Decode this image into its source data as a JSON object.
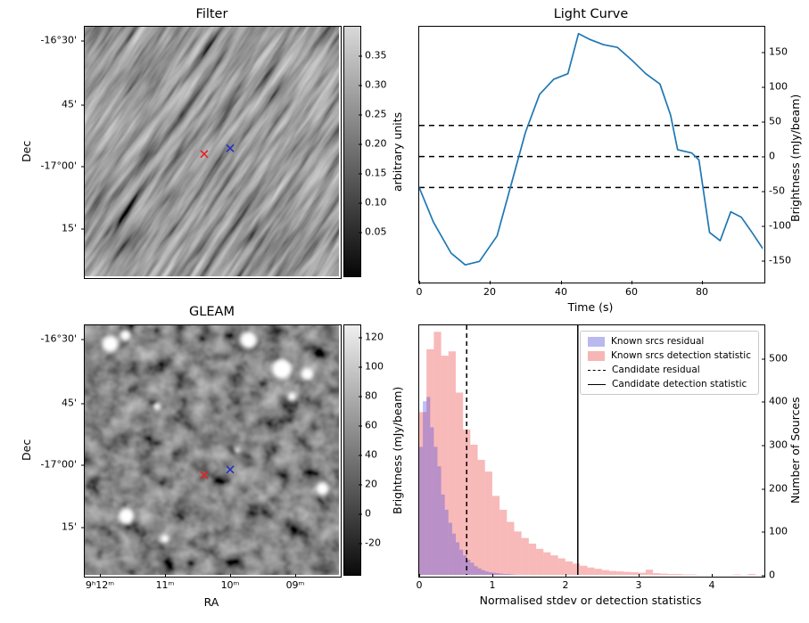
{
  "figure": {
    "background": "#ffffff"
  },
  "filter_panel": {
    "title": "Filter",
    "ylabel": "Dec",
    "yticks": [
      "-16°30'",
      "45'",
      "-17°00'",
      "15'"
    ],
    "colorbar_label": "arbitrary units",
    "colorbar_ticks": [
      "0.35",
      "0.30",
      "0.25",
      "0.20",
      "0.15",
      "0.10",
      "0.05"
    ]
  },
  "light_curve_panel": {
    "title": "Light Curve",
    "xlabel": "Time (s)",
    "ylabel": "Brightness (mJy/beam)",
    "xticks": [
      "0",
      "20",
      "40",
      "60",
      "80"
    ],
    "yticks": [
      "150",
      "100",
      "50",
      "0",
      "-50",
      "-100",
      "-150"
    ]
  },
  "gleam_panel": {
    "title": "GLEAM",
    "xlabel": "RA",
    "ylabel": "Dec",
    "xticks": [
      "9ʰ12ᵐ",
      "11ᵐ",
      "10ᵐ",
      "09ᵐ"
    ],
    "yticks": [
      "-16°30'",
      "45'",
      "-17°00'",
      "15'"
    ],
    "colorbar_label": "Brightness (mJy/beam)",
    "colorbar_ticks": [
      "120",
      "100",
      "80",
      "60",
      "40",
      "20",
      "0",
      "-20"
    ]
  },
  "hist_panel": {
    "xlabel": "Normalised stdev or detection statistics",
    "ylabel": "Number of Sources",
    "xticks": [
      "0",
      "1",
      "2",
      "3",
      "4"
    ],
    "yticks": [
      "0",
      "100",
      "200",
      "300",
      "400",
      "500"
    ],
    "legend": [
      "Known srcs residual",
      "Known srcs detection statistic",
      "Candidate residual",
      "Candidate detection statistic"
    ],
    "legend_colors": [
      "#b9b9ef",
      "#f6b6b6"
    ]
  },
  "chart_data": [
    {
      "id": "filter_image",
      "type": "heatmap",
      "title": "Filter",
      "xlabel": "",
      "ylabel": "Dec",
      "ytick_labels": [
        "-16°30'",
        "45'",
        "-17°00'",
        "15'"
      ],
      "colorbar": {
        "label": "arbitrary units",
        "ticks": [
          0.35,
          0.3,
          0.25,
          0.2,
          0.15,
          0.1,
          0.05
        ]
      },
      "description": "Grey-scale filtered radio image dominated by diagonal streaked noise",
      "markers": [
        {
          "shape": "x",
          "color": "#e22222",
          "fx": 0.47,
          "fy": 0.51
        },
        {
          "shape": "x",
          "color": "#2233bb",
          "fx": 0.572,
          "fy": 0.487
        }
      ]
    },
    {
      "id": "light_curve",
      "type": "line",
      "title": "Light Curve",
      "xlabel": "Time (s)",
      "ylabel": "Brightness (mJy/beam)",
      "xlim": [
        0,
        97
      ],
      "ylim": [
        -180,
        188
      ],
      "line_color": "#1f77b4",
      "x": [
        0,
        4,
        9,
        13,
        17,
        22,
        26,
        30,
        34,
        38,
        42,
        45,
        48,
        52,
        56,
        60,
        64,
        68,
        71,
        73,
        77,
        79,
        82,
        85,
        88,
        91,
        94,
        97
      ],
      "y": [
        -45,
        -95,
        -140,
        -157,
        -152,
        -115,
        -40,
        35,
        90,
        112,
        120,
        178,
        170,
        162,
        158,
        140,
        120,
        105,
        60,
        10,
        5,
        -5,
        -110,
        -122,
        -80,
        -88,
        -110,
        -133
      ],
      "hlines": [
        45,
        0,
        -45
      ]
    },
    {
      "id": "gleam_image",
      "type": "heatmap",
      "title": "GLEAM",
      "xlabel": "RA",
      "ylabel": "Dec",
      "xtick_labels": [
        "9ʰ12ᵐ",
        "11ᵐ",
        "10ᵐ",
        "09ᵐ"
      ],
      "ytick_labels": [
        "-16°30'",
        "45'",
        "-17°00'",
        "15'"
      ],
      "colorbar": {
        "label": "Brightness (mJy/beam)",
        "ticks": [
          120,
          100,
          80,
          60,
          40,
          20,
          0,
          -20
        ]
      },
      "description": "GLEAM reference sky image with bright point sources on noisy background",
      "markers": [
        {
          "shape": "x",
          "color": "#e22222",
          "fx": 0.47,
          "fy": 0.6
        },
        {
          "shape": "x",
          "color": "#2233bb",
          "fx": 0.572,
          "fy": 0.578
        }
      ],
      "sources": [
        {
          "fx": 0.1,
          "fy": 0.075,
          "r": 9
        },
        {
          "fx": 0.16,
          "fy": 0.04,
          "r": 6
        },
        {
          "fx": 0.645,
          "fy": 0.06,
          "r": 9
        },
        {
          "fx": 0.775,
          "fy": 0.175,
          "r": 11
        },
        {
          "fx": 0.875,
          "fy": 0.195,
          "r": 7
        },
        {
          "fx": 0.815,
          "fy": 0.285,
          "r": 5
        },
        {
          "fx": 0.285,
          "fy": 0.325,
          "r": 4
        },
        {
          "fx": 0.6,
          "fy": 0.5,
          "r": 3
        },
        {
          "fx": 0.935,
          "fy": 0.655,
          "r": 7
        },
        {
          "fx": 0.165,
          "fy": 0.765,
          "r": 9
        },
        {
          "fx": 0.315,
          "fy": 0.855,
          "r": 5
        }
      ]
    },
    {
      "id": "histogram",
      "type": "bar",
      "xlabel": "Normalised stdev or detection statistics",
      "ylabel": "Number of Sources",
      "xlim": [
        0,
        4.7
      ],
      "ylim": [
        0,
        575
      ],
      "series": [
        {
          "name": "Known srcs detection statistic",
          "color": "rgba(240,100,100,0.45)",
          "legend_color": "#f6b6b6",
          "start": 0,
          "bin_width": 0.1,
          "values": [
            375,
            520,
            560,
            505,
            515,
            420,
            335,
            300,
            265,
            238,
            182,
            150,
            122,
            100,
            85,
            72,
            60,
            52,
            45,
            38,
            31,
            26,
            21,
            17,
            14,
            11,
            9,
            8,
            7,
            6,
            5,
            12,
            4,
            3,
            2,
            2,
            1,
            1,
            0,
            0,
            0,
            0,
            0,
            1,
            0,
            2
          ]
        },
        {
          "name": "Known srcs residual",
          "color": "rgba(70,70,225,0.35)",
          "legend_color": "#b9b9ef",
          "start": 0,
          "bin_width": 0.05,
          "values": [
            295,
            400,
            410,
            340,
            295,
            250,
            185,
            150,
            120,
            95,
            75,
            58,
            45,
            35,
            28,
            20,
            15,
            11,
            8,
            6,
            5,
            4,
            3,
            2,
            2,
            1
          ]
        }
      ],
      "vlines": [
        {
          "name": "Candidate residual",
          "style": "dashed",
          "x": 0.65
        },
        {
          "name": "Candidate detection statistic",
          "style": "solid",
          "x": 2.17
        }
      ]
    }
  ]
}
